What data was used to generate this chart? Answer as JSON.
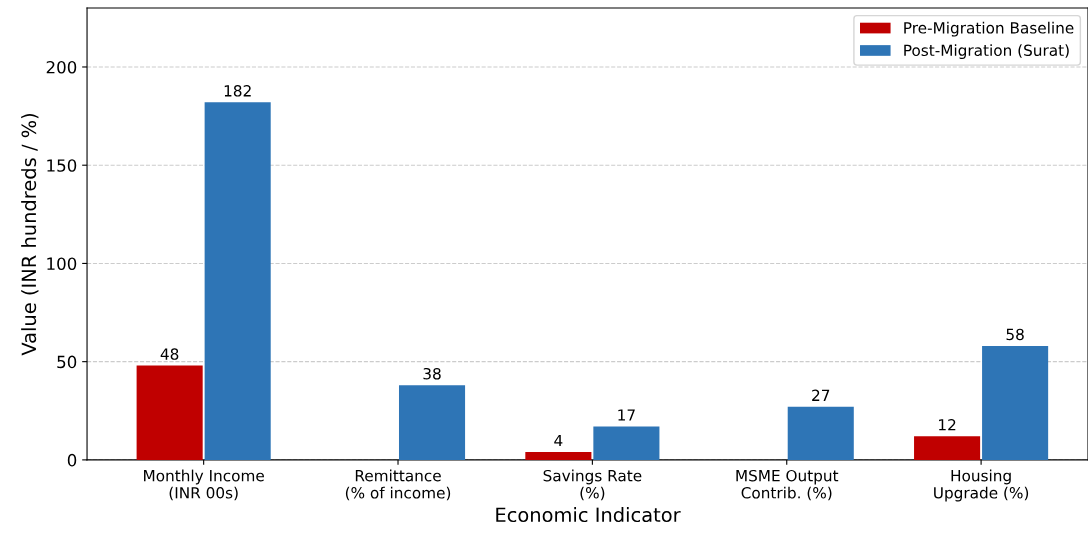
{
  "chart_data": {
    "type": "bar",
    "xlabel": "Economic Indicator",
    "ylabel": "Value (INR hundreds / %)",
    "categories": [
      "Monthly Income\n(INR 00s)",
      "Remittance\n(% of income)",
      "Savings Rate\n(%)",
      "MSME Output\nContrib. (%)",
      "Housing\nUpgrade (%)"
    ],
    "series": [
      {
        "name": "Pre-Migration Baseline",
        "color": "#c00000",
        "values": [
          48,
          0,
          4,
          0,
          12
        ],
        "value_labels": [
          "48",
          null,
          "4",
          null,
          "12"
        ]
      },
      {
        "name": "Post-Migration (Surat)",
        "color": "#2e75b6",
        "values": [
          182,
          38,
          17,
          27,
          58
        ],
        "value_labels": [
          "182",
          "38",
          "17",
          "27",
          "58"
        ]
      }
    ],
    "ylim": [
      0,
      230
    ],
    "yticks": [
      0,
      50,
      100,
      150,
      200
    ],
    "grid": "y",
    "legend": "top right"
  }
}
